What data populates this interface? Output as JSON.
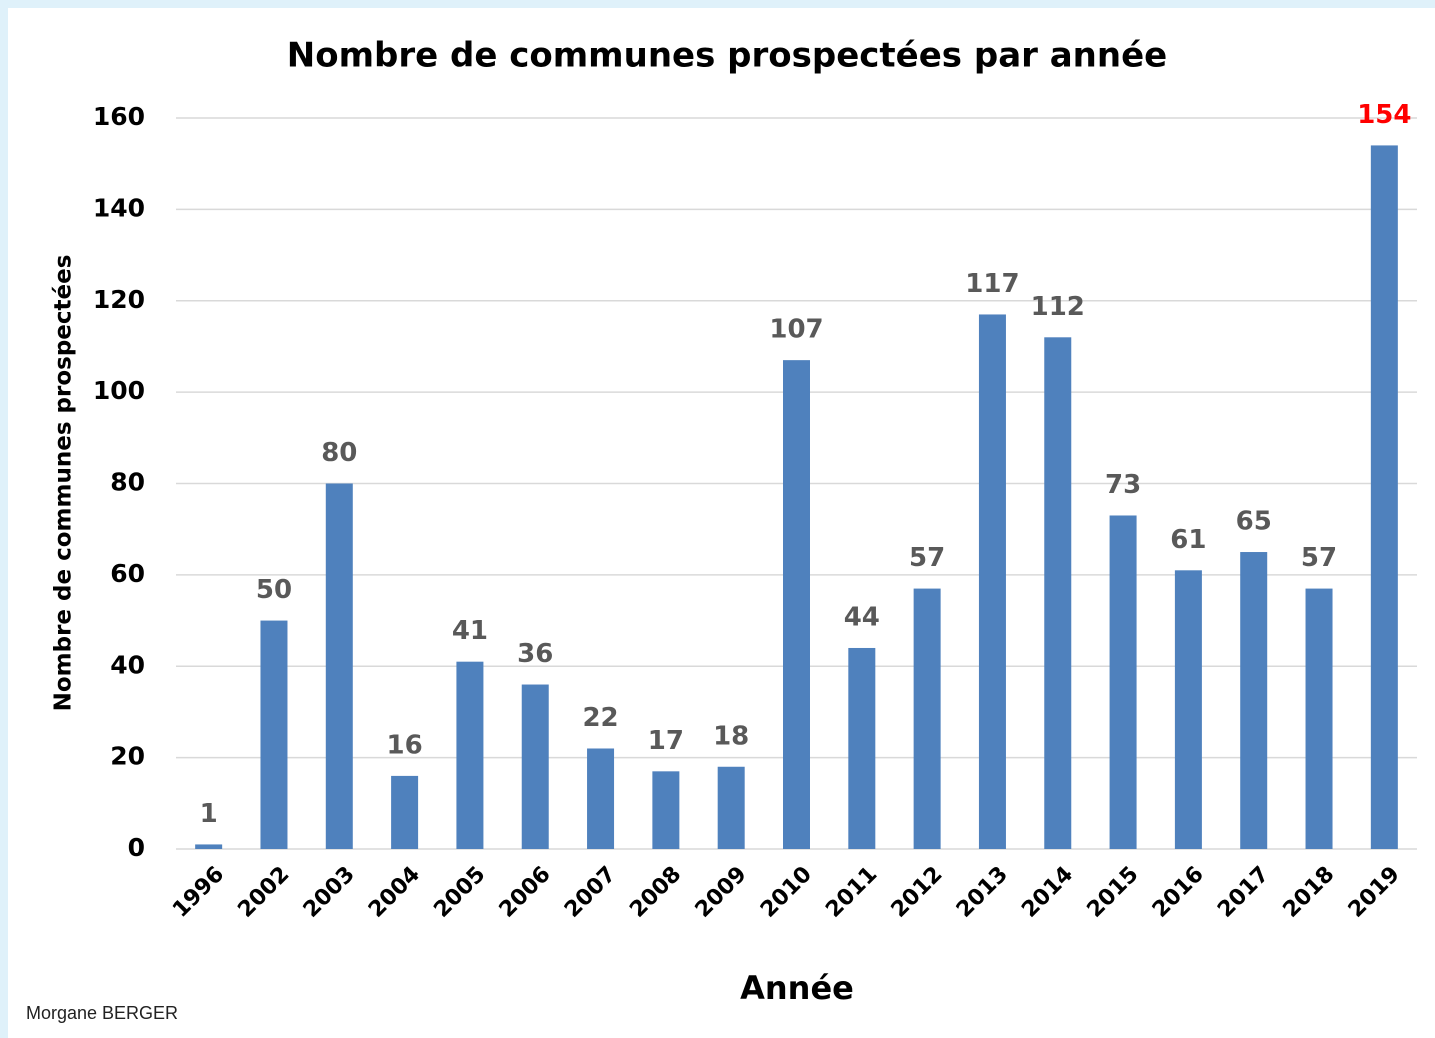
{
  "chart_data": {
    "type": "bar",
    "title": "Nombre de communes prospectées par année",
    "x_label": "Année",
    "y_label": "Nombre de communes prospectées",
    "credit": "Morgane BERGER",
    "categories": [
      "1996",
      "2002",
      "2003",
      "2004",
      "2005",
      "2006",
      "2007",
      "2008",
      "2009",
      "2010",
      "2011",
      "2012",
      "2013",
      "2014",
      "2015",
      "2016",
      "2017",
      "2018",
      "2019"
    ],
    "values": [
      1,
      50,
      80,
      16,
      41,
      36,
      22,
      17,
      18,
      107,
      44,
      57,
      117,
      112,
      73,
      61,
      65,
      57,
      154
    ],
    "color": "#4f81bd",
    "label_colors": [
      "#595959",
      "#595959",
      "#595959",
      "#595959",
      "#595959",
      "#595959",
      "#595959",
      "#595959",
      "#595959",
      "#595959",
      "#595959",
      "#595959",
      "#595959",
      "#595959",
      "#595959",
      "#595959",
      "#595959",
      "#595959",
      "#ff0000"
    ],
    "ylim": [
      0,
      160
    ],
    "yticks": [
      0,
      20,
      40,
      60,
      80,
      100,
      120,
      140,
      160
    ],
    "grid": true
  }
}
